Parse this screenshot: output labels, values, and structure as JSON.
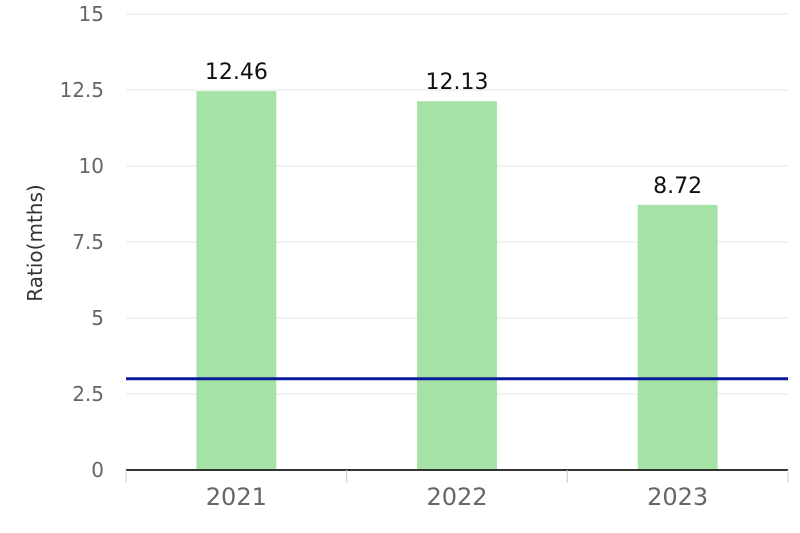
{
  "chart_data": {
    "type": "bar",
    "categories": [
      "2021",
      "2022",
      "2023"
    ],
    "series": [
      {
        "values": [
          12.46,
          12.13,
          8.72
        ],
        "color": "#a5e2a5"
      }
    ],
    "data_labels": [
      "12.46",
      "12.13",
      "8.72"
    ],
    "reference_line": {
      "value": 3.0,
      "color": "#0a1a9c"
    },
    "xlabel": "",
    "ylabel": "Ratio(mths)",
    "ylim": [
      0,
      15
    ],
    "yticks": [
      "0",
      "2.5",
      "5",
      "7.5",
      "10",
      "12.5",
      "15"
    ],
    "grid": true,
    "colors": {
      "grid": "#e6e6e6",
      "axis": "#333333",
      "tick_text": "#666666"
    }
  }
}
